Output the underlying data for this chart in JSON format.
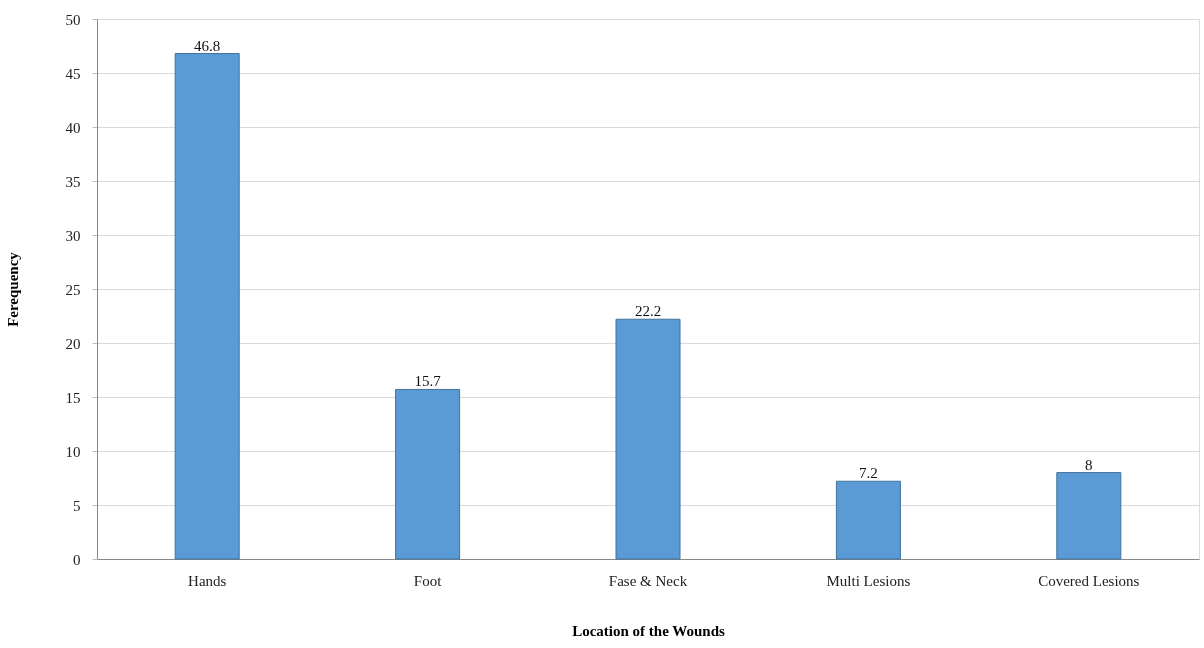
{
  "chart_data": {
    "type": "bar",
    "xlabel": "Location of the Wounds",
    "ylabel": "Ferequency",
    "categories": [
      "Hands",
      "Foot",
      "Fase & Neck",
      "Multi Lesions",
      "Covered Lesions"
    ],
    "values": [
      46.8,
      15.7,
      22.2,
      7.2,
      8
    ],
    "color": "#5b9bd5",
    "ylim": [
      0,
      50
    ],
    "yticks": [
      0,
      5,
      10,
      15,
      20,
      25,
      30,
      35,
      40,
      45,
      50
    ],
    "grid": "y",
    "data_labels": true
  }
}
